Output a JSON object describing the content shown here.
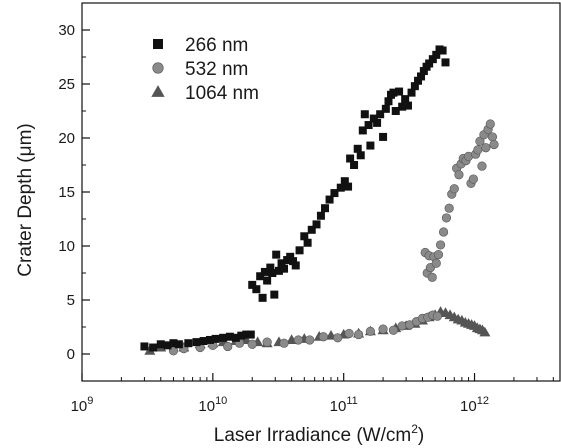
{
  "chart_data": {
    "type": "scatter",
    "x_scale": "log",
    "xlabel": "Laser Irradiance (W/cm",
    "xlabel_sup": "2",
    "xlabel_end": ")",
    "ylabel": "Crater Depth (μm)",
    "xlim": [
      1000000000.0,
      4500000000000.0
    ],
    "ylim": [
      -2.5,
      32.5
    ],
    "x_ticks": [
      {
        "value": 1000000000.0,
        "base": "10",
        "exp": "9"
      },
      {
        "value": 10000000000.0,
        "base": "10",
        "exp": "10"
      },
      {
        "value": 100000000000.0,
        "base": "10",
        "exp": "11"
      },
      {
        "value": 1000000000000.0,
        "base": "10",
        "exp": "12"
      }
    ],
    "y_ticks": [
      0,
      5,
      10,
      15,
      20,
      25,
      30
    ],
    "grid": false,
    "legend_position": "top-left",
    "series": [
      {
        "name": "266 nm",
        "marker": "square",
        "color": "#111111",
        "points": [
          [
            3000000000.0,
            0.7
          ],
          [
            3500000000.0,
            0.6
          ],
          [
            4000000000.0,
            0.9
          ],
          [
            4500000000.0,
            0.8
          ],
          [
            5000000000.0,
            1.0
          ],
          [
            5500000000.0,
            0.9
          ],
          [
            6500000000.0,
            1.0
          ],
          [
            7500000000.0,
            1.1
          ],
          [
            8500000000.0,
            1.2
          ],
          [
            9500000000.0,
            1.3
          ],
          [
            10500000000.0,
            1.4
          ],
          [
            12000000000.0,
            1.5
          ],
          [
            13500000000.0,
            1.6
          ],
          [
            15000000000.0,
            1.5
          ],
          [
            16500000000.0,
            1.7
          ],
          [
            18000000000.0,
            1.8
          ],
          [
            19500000000.0,
            1.8
          ],
          [
            20000000000.0,
            6.4
          ],
          [
            21500000000.0,
            6.0
          ],
          [
            23000000000.0,
            7.2
          ],
          [
            24000000000.0,
            5.2
          ],
          [
            25000000000.0,
            7.6
          ],
          [
            26000000000.0,
            6.8
          ],
          [
            27500000000.0,
            8.0
          ],
          [
            28500000000.0,
            7.5
          ],
          [
            29500000000.0,
            5.5
          ],
          [
            30500000000.0,
            9.2
          ],
          [
            32000000000.0,
            7.7
          ],
          [
            33500000000.0,
            8.4
          ],
          [
            35000000000.0,
            7.9
          ],
          [
            37000000000.0,
            8.7
          ],
          [
            39000000000.0,
            9.0
          ],
          [
            41000000000.0,
            8.6
          ],
          [
            43000000000.0,
            8.2
          ],
          [
            46000000000.0,
            9.6
          ],
          [
            50000000000.0,
            10.9
          ],
          [
            53000000000.0,
            10.3
          ],
          [
            57000000000.0,
            11.5
          ],
          [
            62000000000.0,
            12.0
          ],
          [
            67000000000.0,
            12.8
          ],
          [
            72000000000.0,
            13.5
          ],
          [
            78000000000.0,
            14.3
          ],
          [
            85000000000.0,
            14.9
          ],
          [
            95000000000.0,
            15.4
          ],
          [
            102000000000.0,
            16.0
          ],
          [
            108000000000.0,
            15.5
          ],
          [
            112000000000.0,
            18.1
          ],
          [
            120000000000.0,
            17.5
          ],
          [
            128000000000.0,
            19.0
          ],
          [
            135000000000.0,
            18.4
          ],
          [
            140000000000.0,
            20.7
          ],
          [
            145000000000.0,
            22.2
          ],
          [
            155000000000.0,
            21.2
          ],
          [
            160000000000.0,
            19.3
          ],
          [
            170000000000.0,
            21.8
          ],
          [
            180000000000.0,
            21.4
          ],
          [
            190000000000.0,
            22.2
          ],
          [
            200000000000.0,
            20.1
          ],
          [
            210000000000.0,
            22.7
          ],
          [
            220000000000.0,
            23.4
          ],
          [
            230000000000.0,
            24.0
          ],
          [
            240000000000.0,
            24.2
          ],
          [
            250000000000.0,
            22.5
          ],
          [
            265000000000.0,
            24.3
          ],
          [
            280000000000.0,
            22.9
          ],
          [
            295000000000.0,
            23.6
          ],
          [
            310000000000.0,
            23.0
          ],
          [
            330000000000.0,
            24.2
          ],
          [
            350000000000.0,
            24.8
          ],
          [
            370000000000.0,
            25.3
          ],
          [
            390000000000.0,
            25.7
          ],
          [
            410000000000.0,
            26.2
          ],
          [
            430000000000.0,
            26.6
          ],
          [
            450000000000.0,
            26.9
          ],
          [
            480000000000.0,
            27.3
          ],
          [
            510000000000.0,
            27.7
          ],
          [
            540000000000.0,
            28.2
          ],
          [
            570000000000.0,
            28.1
          ],
          [
            600000000000.0,
            27.0
          ]
        ]
      },
      {
        "name": "532 nm",
        "marker": "circle",
        "color": "#8a8a8a",
        "points": [
          [
            5000000000.0,
            0.3
          ],
          [
            6000000000.0,
            0.5
          ],
          [
            8000000000.0,
            0.6
          ],
          [
            10000000000.0,
            0.8
          ],
          [
            13000000000.0,
            0.7
          ],
          [
            16000000000.0,
            1.0
          ],
          [
            20000000000.0,
            0.9
          ],
          [
            26000000000.0,
            1.1
          ],
          [
            35000000000.0,
            1.0
          ],
          [
            45000000000.0,
            1.3
          ],
          [
            55000000000.0,
            1.3
          ],
          [
            70000000000.0,
            1.6
          ],
          [
            90000000000.0,
            1.5
          ],
          [
            110000000000.0,
            1.9
          ],
          [
            130000000000.0,
            1.8
          ],
          [
            160000000000.0,
            2.1
          ],
          [
            200000000000.0,
            2.3
          ],
          [
            240000000000.0,
            2.2
          ],
          [
            280000000000.0,
            2.6
          ],
          [
            320000000000.0,
            2.7
          ],
          [
            360000000000.0,
            3.0
          ],
          [
            400000000000.0,
            3.3
          ],
          [
            440000000000.0,
            3.4
          ],
          [
            480000000000.0,
            3.6
          ],
          [
            520000000000.0,
            3.5
          ],
          [
            420000000000.0,
            9.4
          ],
          [
            435000000000.0,
            7.5
          ],
          [
            450000000000.0,
            9.1
          ],
          [
            460000000000.0,
            8.0
          ],
          [
            475000000000.0,
            7.1
          ],
          [
            490000000000.0,
            9.0
          ],
          [
            510000000000.0,
            8.4
          ],
          [
            530000000000.0,
            9.2
          ],
          [
            550000000000.0,
            10.1
          ],
          [
            580000000000.0,
            11.3
          ],
          [
            610000000000.0,
            12.6
          ],
          [
            640000000000.0,
            13.5
          ],
          [
            670000000000.0,
            14.8
          ],
          [
            700000000000.0,
            15.3
          ],
          [
            730000000000.0,
            17.2
          ],
          [
            760000000000.0,
            16.6
          ],
          [
            790000000000.0,
            17.6
          ],
          [
            820000000000.0,
            18.1
          ],
          [
            860000000000.0,
            17.9
          ],
          [
            900000000000.0,
            18.3
          ],
          [
            940000000000.0,
            15.8
          ],
          [
            980000000000.0,
            16.2
          ],
          [
            1020000000000.0,
            18.5
          ],
          [
            1060000000000.0,
            18.9
          ],
          [
            1100000000000.0,
            19.7
          ],
          [
            1140000000000.0,
            17.4
          ],
          [
            1180000000000.0,
            20.3
          ],
          [
            1220000000000.0,
            19.1
          ],
          [
            1270000000000.0,
            20.8
          ],
          [
            1320000000000.0,
            21.3
          ],
          [
            1370000000000.0,
            20.1
          ],
          [
            1410000000000.0,
            19.4
          ]
        ]
      },
      {
        "name": "1064 nm",
        "marker": "triangle",
        "color": "#555555",
        "points": [
          [
            3300000000.0,
            0.3
          ],
          [
            4000000000.0,
            0.6
          ],
          [
            6000000000.0,
            0.6
          ],
          [
            8000000000.0,
            0.9
          ],
          [
            10000000000.0,
            1.0
          ],
          [
            12000000000.0,
            1.1
          ],
          [
            15000000000.0,
            1.2
          ],
          [
            18000000000.0,
            1.3
          ],
          [
            22000000000.0,
            1.1
          ],
          [
            26000000000.0,
            1.0
          ],
          [
            32000000000.0,
            1.1
          ],
          [
            40000000000.0,
            1.3
          ],
          [
            50000000000.0,
            1.4
          ],
          [
            65000000000.0,
            1.6
          ],
          [
            80000000000.0,
            1.7
          ],
          [
            100000000000.0,
            1.8
          ],
          [
            130000000000.0,
            1.9
          ],
          [
            160000000000.0,
            2.1
          ],
          [
            200000000000.0,
            2.2
          ],
          [
            250000000000.0,
            2.4
          ],
          [
            300000000000.0,
            2.6
          ],
          [
            350000000000.0,
            2.8
          ],
          [
            400000000000.0,
            3.1
          ],
          [
            450000000000.0,
            3.4
          ],
          [
            500000000000.0,
            3.6
          ],
          [
            550000000000.0,
            3.9
          ],
          [
            600000000000.0,
            3.8
          ],
          [
            650000000000.0,
            3.6
          ],
          [
            700000000000.0,
            3.4
          ],
          [
            750000000000.0,
            3.2
          ],
          [
            800000000000.0,
            3.1
          ],
          [
            850000000000.0,
            2.9
          ],
          [
            900000000000.0,
            2.8
          ],
          [
            950000000000.0,
            2.7
          ],
          [
            1000000000000.0,
            2.6
          ],
          [
            1050000000000.0,
            2.4
          ],
          [
            1100000000000.0,
            2.3
          ],
          [
            1150000000000.0,
            2.2
          ],
          [
            1200000000000.0,
            2.0
          ]
        ]
      }
    ]
  }
}
